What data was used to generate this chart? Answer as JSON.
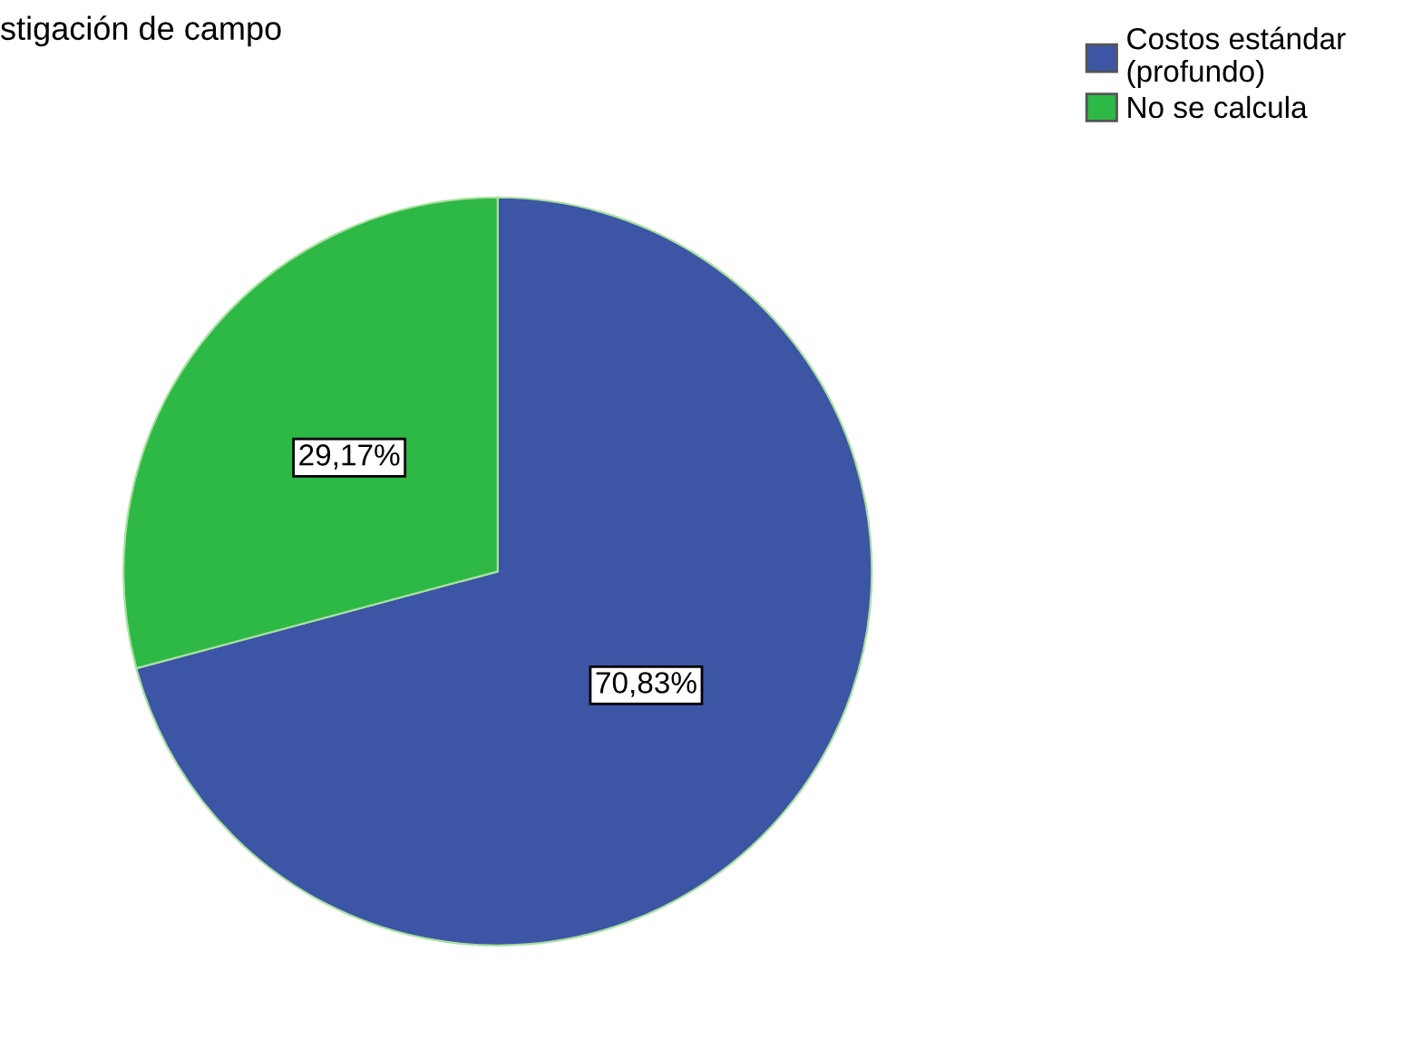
{
  "chart_data": {
    "type": "pie",
    "title": "stigación de campo",
    "categories": [
      "Costos estándar\n(profundo)",
      "No se calcula"
    ],
    "values": [
      70.83,
      29.17
    ],
    "colors": [
      "#3c55a5",
      "#2eb845"
    ],
    "value_labels": [
      "70,83%",
      "29,17%"
    ],
    "legend": "top right"
  }
}
